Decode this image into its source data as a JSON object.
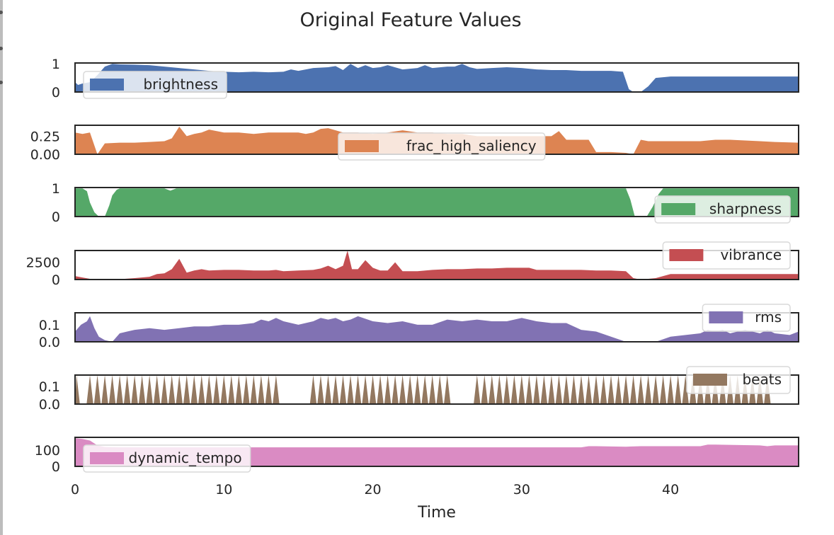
{
  "chart_data": {
    "type": "area",
    "title": "Original Feature Values",
    "xlabel": "Time",
    "xlim": [
      0,
      48.6
    ],
    "xticks": [
      "0",
      "10",
      "20",
      "30",
      "40"
    ],
    "xtick_values": [
      0,
      10,
      20,
      30,
      40
    ],
    "grid": false,
    "series": [
      {
        "name": "brightness",
        "color": "#4C72B0",
        "ylim": [
          0,
          1.03
        ],
        "yticks": [
          "1",
          "0"
        ],
        "ytick_values": [
          1,
          0
        ],
        "legend_pos": "top-left",
        "x": [
          0,
          0.2,
          0.5,
          1.0,
          1.5,
          2.0,
          2.5,
          3.0,
          4.0,
          5.0,
          6.0,
          7.0,
          8.0,
          9.0,
          10.0,
          11.0,
          12.0,
          13.0,
          14.0,
          14.5,
          15.0,
          16.0,
          17.0,
          17.5,
          18.0,
          18.5,
          19.0,
          19.5,
          20.0,
          20.5,
          21.0,
          22.0,
          23.0,
          23.5,
          24.0,
          25.0,
          25.5,
          26.0,
          26.5,
          27.0,
          28.0,
          29.0,
          30.0,
          31.0,
          32.0,
          33.0,
          34.0,
          35.0,
          36.0,
          36.8,
          37.2,
          37.5,
          38.0,
          38.5,
          39.0,
          40.0,
          41.0,
          42.0,
          43.0,
          44.0,
          45.0,
          46.0,
          47.0,
          48.6
        ],
        "values": [
          0.35,
          0.25,
          0.3,
          0.35,
          0.6,
          0.9,
          1.0,
          0.98,
          0.97,
          0.95,
          0.9,
          0.85,
          0.8,
          0.75,
          0.72,
          0.7,
          0.72,
          0.7,
          0.72,
          0.8,
          0.75,
          0.85,
          0.88,
          0.92,
          0.78,
          1.0,
          0.85,
          0.95,
          0.85,
          0.88,
          0.95,
          0.8,
          0.85,
          0.95,
          0.85,
          0.9,
          0.9,
          1.0,
          0.88,
          0.82,
          0.85,
          0.88,
          0.85,
          0.8,
          0.78,
          0.78,
          0.75,
          0.75,
          0.75,
          0.72,
          0.1,
          0.0,
          0.0,
          0.2,
          0.5,
          0.55,
          0.55,
          0.55,
          0.55,
          0.55,
          0.55,
          0.55,
          0.55,
          0.55
        ]
      },
      {
        "name": "frac_high_saliency",
        "color": "#DD8452",
        "ylim": [
          0,
          0.4
        ],
        "yticks": [
          "0.25",
          "0.00"
        ],
        "ytick_values": [
          0.25,
          0.0
        ],
        "legend_pos": "top-center",
        "x": [
          0,
          0.5,
          1.0,
          1.5,
          2.0,
          3.0,
          4.0,
          5.0,
          6.0,
          6.5,
          7.0,
          7.5,
          8.0,
          8.5,
          9.0,
          10.0,
          11.0,
          12.0,
          13.0,
          14.0,
          15.0,
          15.5,
          16.0,
          16.5,
          17.0,
          17.5,
          18.0,
          19.0,
          20.0,
          21.0,
          22.0,
          23.0,
          24.0,
          25.0,
          26.0,
          27.0,
          28.0,
          29.0,
          30.0,
          31.0,
          32.0,
          32.5,
          33.0,
          34.0,
          34.5,
          35.0,
          36.0,
          37.0,
          37.5,
          38.0,
          38.5,
          39.0,
          40.0,
          41.0,
          42.0,
          43.0,
          44.0,
          45.0,
          46.0,
          47.0,
          48.6
        ],
        "values": [
          0.3,
          0.28,
          0.3,
          0.0,
          0.15,
          0.16,
          0.16,
          0.17,
          0.18,
          0.22,
          0.38,
          0.25,
          0.28,
          0.3,
          0.34,
          0.3,
          0.3,
          0.28,
          0.3,
          0.3,
          0.3,
          0.28,
          0.3,
          0.35,
          0.36,
          0.33,
          0.3,
          0.3,
          0.28,
          0.3,
          0.33,
          0.3,
          0.3,
          0.28,
          0.28,
          0.25,
          0.25,
          0.25,
          0.25,
          0.25,
          0.25,
          0.32,
          0.2,
          0.2,
          0.2,
          0.03,
          0.03,
          0.02,
          0.0,
          0.2,
          0.18,
          0.18,
          0.18,
          0.18,
          0.18,
          0.2,
          0.2,
          0.19,
          0.18,
          0.17,
          0.16
        ]
      },
      {
        "name": "sharpness",
        "color": "#55A868",
        "ylim": [
          0,
          1.03
        ],
        "yticks": [
          "1",
          "0"
        ],
        "ytick_values": [
          1,
          0
        ],
        "legend_pos": "bottom-right",
        "x": [
          0,
          0.5,
          0.8,
          1.0,
          1.3,
          1.6,
          2.0,
          2.3,
          2.5,
          2.8,
          3.0,
          6.0,
          6.4,
          6.8,
          7.0,
          10.0,
          20.0,
          30.0,
          36.0,
          37.0,
          37.3,
          37.6,
          38.0,
          38.4,
          38.8,
          39.2,
          39.5,
          40.0,
          48.6
        ],
        "values": [
          1,
          1,
          0.9,
          0.5,
          0.15,
          0.0,
          0.0,
          0.4,
          0.75,
          0.95,
          1,
          1,
          0.92,
          1,
          1,
          1,
          1,
          1,
          1,
          1,
          0.6,
          0.0,
          0.0,
          0.0,
          0.35,
          0.8,
          1,
          1,
          1
        ]
      },
      {
        "name": "vibrance",
        "color": "#C44E52",
        "ylim": [
          0,
          4200
        ],
        "yticks": [
          "2500",
          "0"
        ],
        "ytick_values": [
          2500,
          0
        ],
        "legend_pos": "top-right",
        "x": [
          0,
          0.5,
          1.0,
          2.0,
          3.0,
          4.0,
          5.0,
          5.5,
          6.0,
          6.5,
          7.0,
          7.5,
          8.0,
          8.5,
          9.0,
          10.0,
          11.0,
          12.0,
          13.0,
          13.5,
          14.0,
          15.0,
          16.0,
          16.5,
          17.0,
          17.5,
          18.0,
          18.3,
          18.6,
          19.0,
          19.5,
          20.0,
          20.5,
          21.0,
          21.5,
          22.0,
          23.0,
          24.0,
          25.0,
          26.0,
          27.0,
          28.0,
          29.0,
          30.0,
          30.5,
          31.0,
          32.0,
          33.0,
          34.0,
          35.0,
          36.0,
          37.0,
          37.5,
          38.0,
          39.0,
          40.0,
          41.0,
          42.0,
          43.0,
          44.0,
          45.0,
          46.0,
          47.0,
          48.6
        ],
        "values": [
          500,
          300,
          100,
          50,
          50,
          200,
          400,
          800,
          900,
          1500,
          3000,
          1000,
          1300,
          1500,
          1300,
          1400,
          1400,
          1300,
          1300,
          1400,
          1200,
          1300,
          1400,
          1600,
          2000,
          1500,
          2000,
          4200,
          1500,
          1500,
          2800,
          1700,
          1300,
          1300,
          2500,
          1200,
          1200,
          1400,
          1500,
          1500,
          1600,
          1600,
          1700,
          1700,
          1700,
          1400,
          1400,
          1400,
          1400,
          1300,
          1300,
          1200,
          200,
          0,
          200,
          800,
          800,
          800,
          800,
          800,
          800,
          800,
          800,
          800
        ]
      },
      {
        "name": "rms",
        "color": "#8172B3",
        "ylim": [
          0,
          0.17
        ],
        "yticks": [
          "0.1",
          "0.0"
        ],
        "ytick_values": [
          0.1,
          0.0
        ],
        "legend_pos": "top-right",
        "x": [
          0,
          0.4,
          0.8,
          1.0,
          1.3,
          1.6,
          2.0,
          2.5,
          3.0,
          3.5,
          4.0,
          5.0,
          6.0,
          7.0,
          8.0,
          9.0,
          10.0,
          11.0,
          12.0,
          12.5,
          13.0,
          13.5,
          14.0,
          15.0,
          16.0,
          16.5,
          17.0,
          17.5,
          18.0,
          18.5,
          19.0,
          20.0,
          21.0,
          22.0,
          23.0,
          24.0,
          25.0,
          26.0,
          27.0,
          28.0,
          29.0,
          30.0,
          31.0,
          32.0,
          33.0,
          34.0,
          35.0,
          36.0,
          37.0,
          38.0,
          39.0,
          40.0,
          41.0,
          42.0,
          42.5,
          43.0,
          43.5,
          44.0,
          44.5,
          45.0,
          45.5,
          46.0,
          46.5,
          47.0,
          48.0,
          48.6
        ],
        "values": [
          0.06,
          0.1,
          0.12,
          0.15,
          0.08,
          0.03,
          0.01,
          0.0,
          0.05,
          0.06,
          0.07,
          0.08,
          0.07,
          0.08,
          0.09,
          0.09,
          0.1,
          0.1,
          0.11,
          0.13,
          0.12,
          0.14,
          0.12,
          0.1,
          0.12,
          0.14,
          0.13,
          0.14,
          0.12,
          0.13,
          0.15,
          0.12,
          0.11,
          0.12,
          0.1,
          0.1,
          0.13,
          0.12,
          0.13,
          0.12,
          0.12,
          0.14,
          0.12,
          0.11,
          0.11,
          0.07,
          0.06,
          0.03,
          0.0,
          0.0,
          0.0,
          0.03,
          0.04,
          0.05,
          0.07,
          0.06,
          0.07,
          0.05,
          0.06,
          0.07,
          0.06,
          0.05,
          0.07,
          0.05,
          0.04,
          0.06
        ]
      },
      {
        "name": "beats",
        "color": "#937860",
        "ylim": [
          0,
          0.165
        ],
        "yticks": [
          "0.1",
          "0.0"
        ],
        "ytick_values": [
          0.1,
          0.0
        ],
        "legend_pos": "top-right",
        "peak": 0.165,
        "beat_times": [
          0.1,
          1.0,
          1.5,
          2.0,
          2.5,
          3.0,
          3.5,
          4.0,
          4.5,
          5.0,
          5.5,
          6.0,
          6.5,
          7.0,
          7.5,
          8.0,
          8.5,
          9.0,
          9.5,
          10.0,
          10.5,
          11.0,
          11.5,
          12.0,
          12.5,
          13.0,
          13.5,
          16.0,
          16.5,
          17.0,
          17.5,
          18.0,
          18.5,
          19.0,
          19.5,
          20.0,
          20.5,
          21.0,
          21.5,
          22.0,
          22.5,
          23.0,
          23.5,
          24.0,
          24.5,
          25.0,
          27.0,
          27.5,
          28.0,
          28.5,
          29.0,
          29.5,
          30.0,
          30.5,
          31.0,
          31.5,
          32.0,
          32.5,
          33.0,
          33.5,
          34.0,
          34.5,
          35.0,
          35.5,
          36.0,
          36.5,
          37.0,
          37.5,
          38.0,
          38.5,
          39.0,
          39.5,
          40.0,
          40.5,
          41.0,
          41.5,
          42.0,
          42.5,
          43.0,
          43.5,
          44.0,
          44.5,
          45.0,
          45.5,
          46.0,
          46.5
        ],
        "beat_width": 0.45
      },
      {
        "name": "dynamic_tempo",
        "color": "#DA8BC3",
        "ylim": [
          0,
          180
        ],
        "yticks": [
          "100",
          "0"
        ],
        "ytick_values": [
          100,
          0
        ],
        "legend_pos": "bottom-left",
        "x": [
          0,
          0.5,
          1.0,
          1.5,
          2.0,
          3.0,
          10.0,
          20.0,
          30.0,
          34.0,
          34.5,
          35.0,
          37.0,
          38.0,
          40.0,
          42.0,
          42.5,
          43.0,
          46.0,
          46.5,
          47.0,
          48.6
        ],
        "values": [
          175,
          170,
          160,
          130,
          120,
          118,
          118,
          118,
          118,
          118,
          125,
          125,
          122,
          125,
          125,
          125,
          135,
          135,
          130,
          125,
          130,
          130
        ]
      }
    ]
  }
}
